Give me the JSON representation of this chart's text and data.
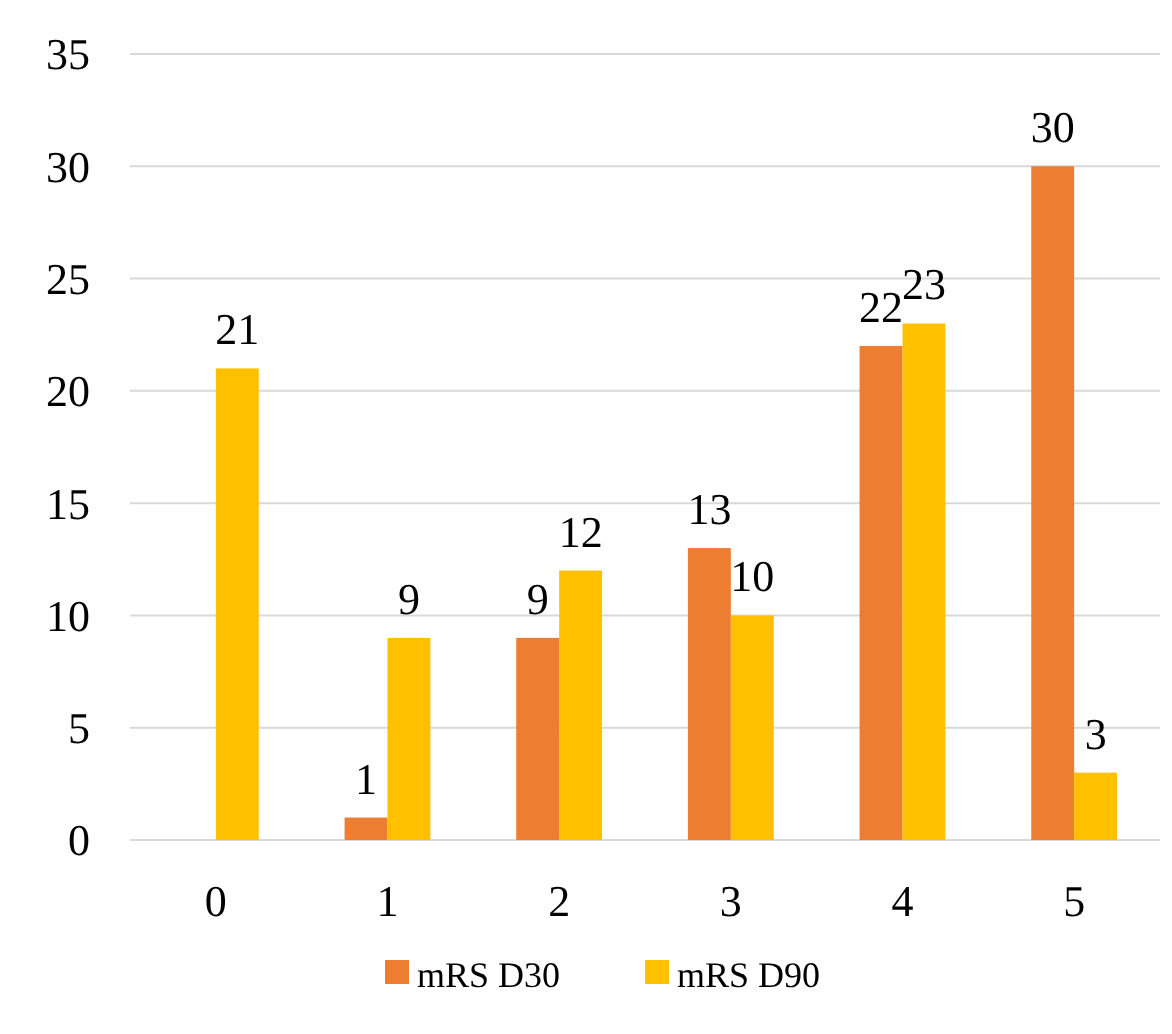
{
  "chart_data": {
    "type": "bar",
    "categories": [
      "0",
      "1",
      "2",
      "3",
      "4",
      "5"
    ],
    "series": [
      {
        "name": "mRS D30",
        "color": "#ed7d31",
        "values": [
          null,
          1,
          9,
          13,
          22,
          30
        ]
      },
      {
        "name": "mRS D90",
        "color": "#ffc000",
        "values": [
          21,
          9,
          12,
          10,
          23,
          3
        ]
      }
    ],
    "ylim": [
      0,
      35
    ],
    "yticks": [
      0,
      5,
      10,
      15,
      20,
      25,
      30,
      35
    ],
    "grid": "y",
    "legend": "bottom",
    "data_labels": true
  }
}
